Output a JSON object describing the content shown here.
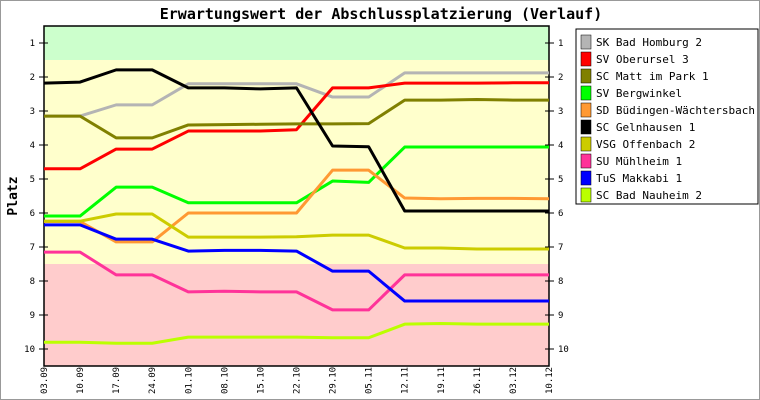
{
  "chart_data": {
    "type": "line",
    "title": "Erwartungswert der Abschlussplatzierung (Verlauf)",
    "ylabel": "Platz",
    "xlabel": "",
    "ylim": [
      10.5,
      0.5
    ],
    "yticks": [
      "1",
      "2",
      "3",
      "4",
      "5",
      "6",
      "7",
      "8",
      "9",
      "10"
    ],
    "categories": [
      "03.09",
      "10.09",
      "17.09",
      "24.09",
      "01.10",
      "08.10",
      "15.10",
      "22.10",
      "29.10",
      "05.11",
      "12.11",
      "19.11",
      "26.11",
      "03.12",
      "10.12"
    ],
    "bands": [
      {
        "from": 0.5,
        "to": 1.5,
        "color": "#ccffcc"
      },
      {
        "from": 1.5,
        "to": 7.5,
        "color": "#ffffcc"
      },
      {
        "from": 7.5,
        "to": 10.5,
        "color": "#ffcccc"
      }
    ],
    "legend_position": "right",
    "series": [
      {
        "name": "SK Bad Homburg 2",
        "color": "#b4b4b4",
        "values": [
          3.15,
          3.15,
          2.82,
          2.82,
          2.2,
          2.2,
          2.2,
          2.2,
          2.59,
          2.59,
          1.88,
          1.88,
          1.88,
          1.88,
          1.88
        ]
      },
      {
        "name": "SV Oberursel 3",
        "color": "#ff0000",
        "values": [
          4.7,
          4.7,
          4.12,
          4.12,
          3.59,
          3.59,
          3.59,
          3.55,
          2.32,
          2.32,
          2.18,
          2.18,
          2.18,
          2.17,
          2.17
        ]
      },
      {
        "name": "SC Matt im Park 1",
        "color": "#808000",
        "values": [
          3.15,
          3.15,
          3.79,
          3.79,
          3.41,
          3.4,
          3.39,
          3.38,
          3.38,
          3.37,
          2.68,
          2.68,
          2.66,
          2.68,
          2.68
        ]
      },
      {
        "name": "SV Bergwinkel",
        "color": "#00ff00",
        "values": [
          6.09,
          6.09,
          5.24,
          5.24,
          5.7,
          5.7,
          5.7,
          5.7,
          5.06,
          5.1,
          4.06,
          4.06,
          4.06,
          4.06,
          4.06
        ]
      },
      {
        "name": "SD Büdingen-Wächtersbach 1",
        "color": "#ff9933",
        "values": [
          6.25,
          6.25,
          6.85,
          6.85,
          6.0,
          6.0,
          6.0,
          6.0,
          4.74,
          4.74,
          5.56,
          5.58,
          5.57,
          5.57,
          5.58
        ]
      },
      {
        "name": "SC Gelnhausen 1",
        "color": "#000000",
        "values": [
          2.18,
          2.15,
          1.79,
          1.79,
          2.32,
          2.32,
          2.35,
          2.32,
          4.03,
          4.05,
          5.94,
          5.94,
          5.94,
          5.94,
          5.94
        ]
      },
      {
        "name": "VSG Offenbach 2",
        "color": "#cccc00",
        "values": [
          6.24,
          6.24,
          6.03,
          6.03,
          6.71,
          6.71,
          6.71,
          6.7,
          6.65,
          6.65,
          7.03,
          7.03,
          7.06,
          7.06,
          7.06
        ]
      },
      {
        "name": "SU Mühlheim 1",
        "color": "#ff3399",
        "values": [
          7.15,
          7.15,
          7.82,
          7.82,
          8.32,
          8.3,
          8.32,
          8.32,
          8.85,
          8.85,
          7.82,
          7.82,
          7.82,
          7.82,
          7.82
        ]
      },
      {
        "name": "TuS Makkabi 1",
        "color": "#0000ff",
        "values": [
          6.35,
          6.35,
          6.77,
          6.77,
          7.12,
          7.1,
          7.1,
          7.12,
          7.71,
          7.71,
          8.59,
          8.59,
          8.59,
          8.59,
          8.59
        ]
      },
      {
        "name": "SC Bad Nauheim 2",
        "color": "#bbff00",
        "values": [
          9.8,
          9.8,
          9.83,
          9.83,
          9.65,
          9.65,
          9.65,
          9.65,
          9.67,
          9.67,
          9.27,
          9.25,
          9.27,
          9.27,
          9.27
        ]
      }
    ]
  }
}
